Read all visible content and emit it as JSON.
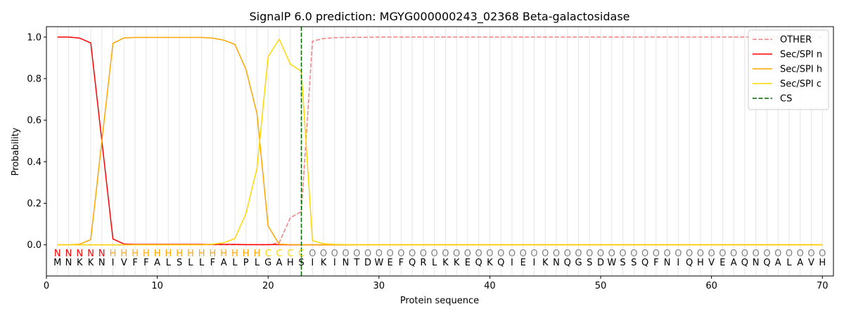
{
  "chart_data": {
    "type": "line",
    "title": "SignalP 6.0 prediction: MGYG000000243_02368 Beta-galactosidase",
    "xlabel": "Protein sequence",
    "ylabel": "Probability",
    "xlim": [
      0,
      71
    ],
    "ylim": [
      -0.15,
      1.05
    ],
    "x_ticks": [
      0,
      10,
      20,
      30,
      40,
      50,
      60,
      70
    ],
    "y_ticks": [
      0.0,
      0.2,
      0.4,
      0.6,
      0.8,
      1.0
    ],
    "x_tick_labels": [
      "0",
      "10",
      "20",
      "30",
      "40",
      "50",
      "60",
      "70"
    ],
    "y_tick_labels": [
      "0.0",
      "0.2",
      "0.4",
      "0.6",
      "0.8",
      "1.0"
    ],
    "legend_position": "upper right",
    "sequence": [
      "M",
      "N",
      "K",
      "K",
      "N",
      "I",
      "V",
      "F",
      "F",
      "A",
      "L",
      "S",
      "L",
      "L",
      "F",
      "A",
      "L",
      "P",
      "L",
      "G",
      "A",
      "H",
      "S",
      "I",
      "K",
      "I",
      "N",
      "T",
      "D",
      "W",
      "E",
      "F",
      "Q",
      "R",
      "L",
      "K",
      "K",
      "E",
      "Q",
      "K",
      "Q",
      "I",
      "E",
      "I",
      "K",
      "N",
      "Q",
      "G",
      "S",
      "D",
      "W",
      "S",
      "S",
      "Q",
      "F",
      "N",
      "I",
      "Q",
      "H",
      "V",
      "E",
      "A",
      "Q",
      "N",
      "Q",
      "A",
      "L",
      "A",
      "V",
      "H"
    ],
    "labels": [
      "N",
      "N",
      "N",
      "N",
      "N",
      "H",
      "H",
      "H",
      "H",
      "H",
      "H",
      "H",
      "H",
      "H",
      "H",
      "H",
      "H",
      "H",
      "H",
      "C",
      "C",
      "C",
      "C",
      "O",
      "O",
      "O",
      "O",
      "O",
      "O",
      "O",
      "O",
      "O",
      "O",
      "O",
      "O",
      "O",
      "O",
      "O",
      "O",
      "O",
      "O",
      "O",
      "O",
      "O",
      "O",
      "O",
      "O",
      "O",
      "O",
      "O",
      "O",
      "O",
      "O",
      "O",
      "O",
      "O",
      "O",
      "O",
      "O",
      "O",
      "O",
      "O",
      "O",
      "O",
      "O",
      "O",
      "O",
      "O",
      "O",
      "O"
    ],
    "label_colors": {
      "N": "#ff0000",
      "H": "#ffa500",
      "C": "#ffd700",
      "O": "#808080"
    },
    "cleavage_site": 23,
    "series": [
      {
        "name": "OTHER",
        "color": "#f08080",
        "dash": "dashed",
        "values": [
          0.0,
          0.0,
          0.0,
          0.0,
          0.0,
          0.0,
          0.0,
          0.0,
          0.0,
          0.0,
          0.0,
          0.0,
          0.0,
          0.0,
          0.0,
          0.0,
          0.0,
          0.0,
          0.0,
          0.0,
          0.01,
          0.13,
          0.16,
          0.98,
          0.993,
          0.997,
          0.998,
          0.999,
          0.999,
          1.0,
          1.0,
          1.0,
          1.0,
          1.0,
          1.0,
          1.0,
          1.0,
          1.0,
          1.0,
          1.0,
          1.0,
          1.0,
          1.0,
          1.0,
          1.0,
          1.0,
          1.0,
          1.0,
          1.0,
          1.0,
          1.0,
          1.0,
          1.0,
          1.0,
          1.0,
          1.0,
          1.0,
          1.0,
          1.0,
          1.0,
          1.0,
          1.0,
          1.0,
          1.0,
          1.0,
          1.0,
          1.0,
          1.0,
          1.0,
          1.0
        ]
      },
      {
        "name": "Sec/SPI n",
        "color": "#ff0000",
        "dash": "solid",
        "values": [
          1.0,
          1.0,
          0.995,
          0.972,
          0.5,
          0.028,
          0.004,
          0.002,
          0.002,
          0.002,
          0.002,
          0.002,
          0.002,
          0.002,
          0.002,
          0.002,
          0.002,
          0.001,
          0.001,
          0.001,
          0.001,
          0.0,
          0.0,
          0.0,
          0.0,
          0.0,
          0.0,
          0.0,
          0.0,
          0.0,
          0.0,
          0.0,
          0.0,
          0.0,
          0.0,
          0.0,
          0.0,
          0.0,
          0.0,
          0.0,
          0.0,
          0.0,
          0.0,
          0.0,
          0.0,
          0.0,
          0.0,
          0.0,
          0.0,
          0.0,
          0.0,
          0.0,
          0.0,
          0.0,
          0.0,
          0.0,
          0.0,
          0.0,
          0.0,
          0.0,
          0.0,
          0.0,
          0.0,
          0.0,
          0.0,
          0.0,
          0.0,
          0.0,
          0.0,
          0.0
        ]
      },
      {
        "name": "Sec/SPI h",
        "color": "#ffa500",
        "dash": "solid",
        "values": [
          0.0,
          0.0,
          0.003,
          0.025,
          0.5,
          0.97,
          0.996,
          0.998,
          0.998,
          0.998,
          0.998,
          0.998,
          0.998,
          0.998,
          0.995,
          0.985,
          0.965,
          0.845,
          0.63,
          0.09,
          0.003,
          0.001,
          0.0,
          0.0,
          0.0,
          0.0,
          0.0,
          0.0,
          0.0,
          0.0,
          0.0,
          0.0,
          0.0,
          0.0,
          0.0,
          0.0,
          0.0,
          0.0,
          0.0,
          0.0,
          0.0,
          0.0,
          0.0,
          0.0,
          0.0,
          0.0,
          0.0,
          0.0,
          0.0,
          0.0,
          0.0,
          0.0,
          0.0,
          0.0,
          0.0,
          0.0,
          0.0,
          0.0,
          0.0,
          0.0,
          0.0,
          0.0,
          0.0,
          0.0,
          0.0,
          0.0,
          0.0,
          0.0,
          0.0,
          0.0
        ]
      },
      {
        "name": "Sec/SPI c",
        "color": "#ffd700",
        "dash": "solid",
        "values": [
          0.0,
          0.0,
          0.0,
          0.0,
          0.0,
          0.0,
          0.0,
          0.0,
          0.0,
          0.0,
          0.0,
          0.0,
          0.0,
          0.0,
          0.003,
          0.01,
          0.03,
          0.15,
          0.37,
          0.905,
          0.99,
          0.87,
          0.835,
          0.02,
          0.005,
          0.002,
          0.001,
          0.0,
          0.0,
          0.0,
          0.0,
          0.0,
          0.0,
          0.0,
          0.0,
          0.0,
          0.0,
          0.0,
          0.0,
          0.0,
          0.0,
          0.0,
          0.0,
          0.0,
          0.0,
          0.0,
          0.0,
          0.0,
          0.0,
          0.0,
          0.0,
          0.0,
          0.0,
          0.0,
          0.0,
          0.0,
          0.0,
          0.0,
          0.0,
          0.0,
          0.0,
          0.0,
          0.0,
          0.0,
          0.0,
          0.0,
          0.0,
          0.0,
          0.0,
          0.0
        ]
      }
    ],
    "cs_legend": {
      "name": "CS",
      "color": "#006400",
      "dash": "dashed"
    }
  }
}
